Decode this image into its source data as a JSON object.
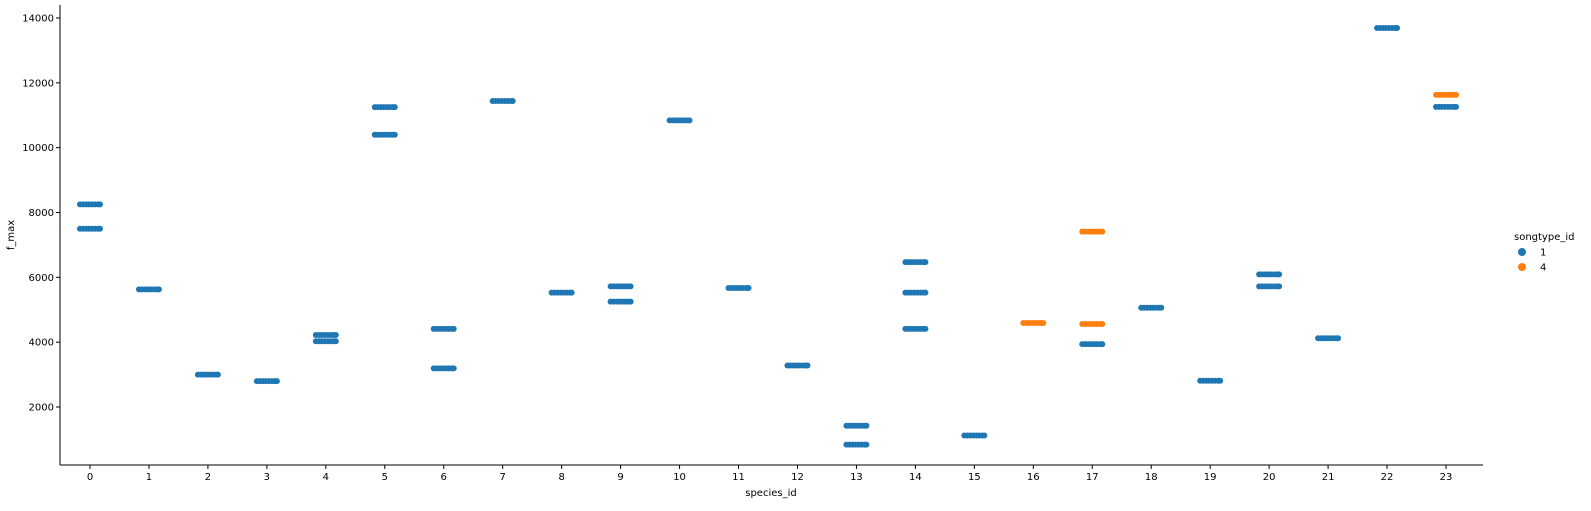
{
  "chart_data": {
    "type": "scatter",
    "xlabel": "species_id",
    "ylabel": "f_max",
    "x_categories": [
      "0",
      "1",
      "2",
      "3",
      "4",
      "5",
      "6",
      "7",
      "8",
      "9",
      "10",
      "11",
      "12",
      "13",
      "14",
      "15",
      "16",
      "17",
      "18",
      "19",
      "20",
      "21",
      "22",
      "23"
    ],
    "y_ticks": [
      2000,
      4000,
      6000,
      8000,
      10000,
      12000,
      14000
    ],
    "ylim": [
      200,
      14400
    ],
    "grid": false,
    "legend": {
      "title": "songtype_id",
      "placement": "right",
      "entries": [
        {
          "label": "1",
          "color": "#1f77b4"
        },
        {
          "label": "4",
          "color": "#ff7f0e"
        }
      ]
    },
    "series": [
      {
        "name": "1",
        "color": "#1f77b4",
        "points": [
          {
            "x": 0,
            "y": 8250
          },
          {
            "x": 0,
            "y": 7500
          },
          {
            "x": 1,
            "y": 5630
          },
          {
            "x": 2,
            "y": 3000
          },
          {
            "x": 3,
            "y": 2800
          },
          {
            "x": 4,
            "y": 4220
          },
          {
            "x": 4,
            "y": 4030
          },
          {
            "x": 5,
            "y": 11250
          },
          {
            "x": 5,
            "y": 10400
          },
          {
            "x": 6,
            "y": 4410
          },
          {
            "x": 6,
            "y": 3190
          },
          {
            "x": 7,
            "y": 11440
          },
          {
            "x": 8,
            "y": 5530
          },
          {
            "x": 9,
            "y": 5720
          },
          {
            "x": 9,
            "y": 5250
          },
          {
            "x": 10,
            "y": 10840
          },
          {
            "x": 11,
            "y": 5670
          },
          {
            "x": 12,
            "y": 3280
          },
          {
            "x": 13,
            "y": 1420
          },
          {
            "x": 13,
            "y": 840
          },
          {
            "x": 14,
            "y": 6470
          },
          {
            "x": 14,
            "y": 5530
          },
          {
            "x": 14,
            "y": 4410
          },
          {
            "x": 15,
            "y": 1120
          },
          {
            "x": 17,
            "y": 3940
          },
          {
            "x": 18,
            "y": 5060
          },
          {
            "x": 19,
            "y": 2810
          },
          {
            "x": 20,
            "y": 6090
          },
          {
            "x": 20,
            "y": 5720
          },
          {
            "x": 21,
            "y": 4120
          },
          {
            "x": 22,
            "y": 13690
          },
          {
            "x": 23,
            "y": 11260
          }
        ]
      },
      {
        "name": "4",
        "color": "#ff7f0e",
        "points": [
          {
            "x": 16,
            "y": 4590
          },
          {
            "x": 17,
            "y": 7410
          },
          {
            "x": 17,
            "y": 4560
          },
          {
            "x": 23,
            "y": 11630
          }
        ]
      }
    ]
  }
}
